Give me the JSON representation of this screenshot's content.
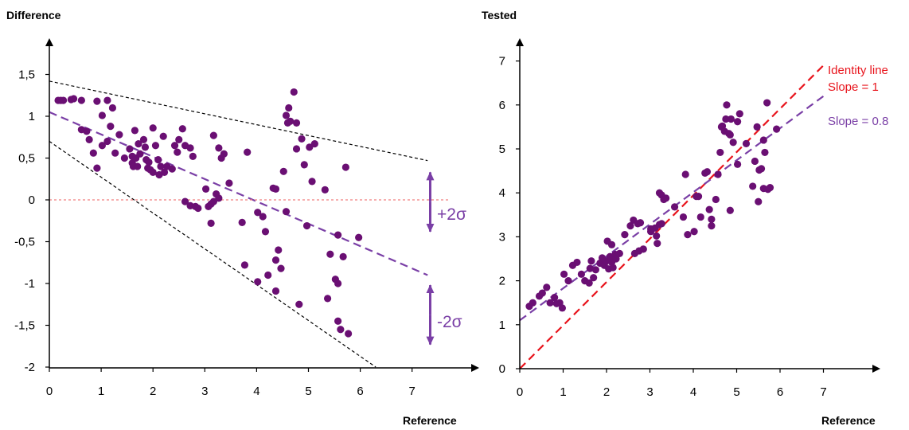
{
  "colors": {
    "points": "#6a0f73",
    "regression": "#7a3fa6",
    "identity": "#e8141c",
    "envelope": "#000000",
    "zero_line": "#f07f7f",
    "arrow": "#7a3fa6",
    "axis": "#000000"
  },
  "chart_data": [
    {
      "type": "scatter",
      "ylabel": "Difference",
      "xlabel": "Reference",
      "xlim": [
        0,
        8
      ],
      "ylim": [
        -2,
        1.75
      ],
      "xticks": [
        0,
        1,
        2,
        3,
        4,
        5,
        6,
        7
      ],
      "yticks": [
        -2,
        -1.5,
        -1,
        -0.5,
        0,
        0.5,
        1,
        1.5
      ],
      "xtick_labels": [
        "0",
        "1",
        "2",
        "3",
        "4",
        "5",
        "6",
        "7"
      ],
      "ytick_labels": [
        "-2",
        "-1,5",
        "-1",
        "-0,5",
        "0",
        "0,5",
        "1",
        "1,5"
      ],
      "grid": false,
      "lines": [
        {
          "kind": "regression",
          "x": [
            0,
            7.3
          ],
          "y": [
            1.05,
            -0.9
          ]
        },
        {
          "kind": "upper-envelope",
          "x": [
            0,
            7.3
          ],
          "y": [
            1.42,
            0.47
          ]
        },
        {
          "kind": "lower-envelope",
          "x": [
            0,
            6.3
          ],
          "y": [
            0.7,
            -2.0
          ]
        },
        {
          "kind": "zero-line",
          "x": [
            0,
            7.7
          ],
          "y": [
            0,
            0
          ]
        }
      ],
      "annotations": [
        {
          "text": "+2σ",
          "x": 7.35,
          "y0": 0.33,
          "y1": -0.38
        },
        {
          "text": "-2σ",
          "x": 7.35,
          "y0": -1.02,
          "y1": -1.73
        }
      ],
      "points": [
        [
          0.17,
          1.19
        ],
        [
          0.22,
          1.19
        ],
        [
          0.27,
          1.19
        ],
        [
          0.42,
          1.2
        ],
        [
          0.47,
          1.21
        ],
        [
          0.62,
          1.19
        ],
        [
          0.92,
          1.18
        ],
        [
          1.12,
          1.19
        ],
        [
          1.22,
          1.1
        ],
        [
          1.02,
          1.01
        ],
        [
          1.18,
          0.88
        ],
        [
          0.62,
          0.84
        ],
        [
          0.72,
          0.82
        ],
        [
          0.77,
          0.72
        ],
        [
          0.85,
          0.56
        ],
        [
          0.92,
          0.38
        ],
        [
          1.02,
          0.65
        ],
        [
          1.12,
          0.7
        ],
        [
          1.27,
          0.56
        ],
        [
          1.35,
          0.78
        ],
        [
          1.45,
          0.5
        ],
        [
          1.55,
          0.61
        ],
        [
          1.6,
          0.52
        ],
        [
          1.6,
          0.44
        ],
        [
          1.62,
          0.4
        ],
        [
          1.65,
          0.83
        ],
        [
          1.67,
          0.5
        ],
        [
          1.7,
          0.4
        ],
        [
          1.72,
          0.67
        ],
        [
          1.75,
          0.55
        ],
        [
          1.82,
          0.72
        ],
        [
          1.85,
          0.63
        ],
        [
          1.87,
          0.48
        ],
        [
          1.9,
          0.38
        ],
        [
          1.92,
          0.45
        ],
        [
          1.95,
          0.36
        ],
        [
          2.0,
          0.33
        ],
        [
          2.0,
          0.86
        ],
        [
          2.05,
          0.65
        ],
        [
          2.1,
          0.48
        ],
        [
          2.12,
          0.3
        ],
        [
          2.15,
          0.4
        ],
        [
          2.2,
          0.76
        ],
        [
          2.22,
          0.33
        ],
        [
          2.27,
          0.4
        ],
        [
          2.37,
          0.37
        ],
        [
          2.42,
          0.65
        ],
        [
          2.47,
          0.57
        ],
        [
          2.5,
          0.72
        ],
        [
          2.57,
          0.85
        ],
        [
          2.62,
          0.65
        ],
        [
          2.72,
          0.62
        ],
        [
          2.77,
          0.52
        ],
        [
          2.62,
          -0.02
        ],
        [
          2.72,
          -0.07
        ],
        [
          2.82,
          -0.08
        ],
        [
          2.87,
          -0.1
        ],
        [
          3.02,
          0.13
        ],
        [
          3.07,
          -0.08
        ],
        [
          3.12,
          -0.05
        ],
        [
          3.12,
          -0.28
        ],
        [
          3.17,
          -0.02
        ],
        [
          3.22,
          0.07
        ],
        [
          3.27,
          0.02
        ],
        [
          3.17,
          0.77
        ],
        [
          3.27,
          0.62
        ],
        [
          3.32,
          0.5
        ],
        [
          3.37,
          0.55
        ],
        [
          3.47,
          0.2
        ],
        [
          3.72,
          -0.27
        ],
        [
          3.82,
          0.57
        ],
        [
          4.02,
          -0.15
        ],
        [
          4.12,
          -0.2
        ],
        [
          4.17,
          -0.38
        ],
        [
          4.32,
          0.14
        ],
        [
          4.37,
          0.13
        ],
        [
          4.52,
          0.34
        ],
        [
          4.42,
          -0.6
        ],
        [
          4.37,
          -0.72
        ],
        [
          3.77,
          -0.78
        ],
        [
          4.02,
          -0.98
        ],
        [
          4.22,
          -0.9
        ],
        [
          4.37,
          -1.09
        ],
        [
          4.47,
          -0.82
        ],
        [
          4.57,
          -0.14
        ],
        [
          4.6,
          0.92
        ],
        [
          4.62,
          1.1
        ],
        [
          4.65,
          0.94
        ],
        [
          4.57,
          1.01
        ],
        [
          4.72,
          1.29
        ],
        [
          4.77,
          0.92
        ],
        [
          4.77,
          0.61
        ],
        [
          4.87,
          0.73
        ],
        [
          4.92,
          0.42
        ],
        [
          5.02,
          0.63
        ],
        [
          5.07,
          0.22
        ],
        [
          5.12,
          0.67
        ],
        [
          4.97,
          -0.31
        ],
        [
          4.82,
          -1.25
        ],
        [
          5.32,
          0.12
        ],
        [
          5.42,
          -0.65
        ],
        [
          5.37,
          -1.18
        ],
        [
          5.52,
          -0.95
        ],
        [
          5.57,
          -1.0
        ],
        [
          5.57,
          -0.42
        ],
        [
          5.67,
          -0.68
        ],
        [
          5.57,
          -1.45
        ],
        [
          5.62,
          -1.55
        ],
        [
          5.72,
          0.39
        ],
        [
          5.77,
          -1.6
        ],
        [
          5.97,
          -0.45
        ]
      ]
    },
    {
      "type": "scatter",
      "ylabel": "Tested",
      "xlabel": "Reference",
      "xlim": [
        0,
        8
      ],
      "ylim": [
        0,
        7.5
      ],
      "xticks": [
        0,
        1,
        2,
        3,
        4,
        5,
        6,
        7
      ],
      "yticks": [
        0,
        1,
        2,
        3,
        4,
        5,
        6,
        7
      ],
      "xtick_labels": [
        "0",
        "1",
        "2",
        "3",
        "4",
        "5",
        "6",
        "7"
      ],
      "ytick_labels": [
        "0",
        "1",
        "2",
        "3",
        "4",
        "5",
        "6",
        "7"
      ],
      "grid": false,
      "lines": [
        {
          "kind": "identity",
          "name": "Slope = 1",
          "x": [
            0,
            7.0
          ],
          "y": [
            0,
            6.9
          ]
        },
        {
          "kind": "regression",
          "name": "Slope = 0.8",
          "x": [
            0,
            7.0
          ],
          "y": [
            1.1,
            6.2
          ]
        }
      ],
      "legend": {
        "placement": "top-right",
        "entries": [
          "Identity line",
          "Slope = 1",
          "Slope = 0.8"
        ]
      },
      "points": [
        [
          0.22,
          1.42
        ],
        [
          0.3,
          1.5
        ],
        [
          0.45,
          1.65
        ],
        [
          0.52,
          1.72
        ],
        [
          0.62,
          1.85
        ],
        [
          0.7,
          1.5
        ],
        [
          0.8,
          1.62
        ],
        [
          0.85,
          1.48
        ],
        [
          0.92,
          1.5
        ],
        [
          0.98,
          1.38
        ],
        [
          1.02,
          2.15
        ],
        [
          1.12,
          2.0
        ],
        [
          1.22,
          2.35
        ],
        [
          1.32,
          2.42
        ],
        [
          1.42,
          2.15
        ],
        [
          1.5,
          2.0
        ],
        [
          1.6,
          1.95
        ],
        [
          1.62,
          2.28
        ],
        [
          1.65,
          2.45
        ],
        [
          1.7,
          2.07
        ],
        [
          1.75,
          2.25
        ],
        [
          1.85,
          2.4
        ],
        [
          1.9,
          2.52
        ],
        [
          1.95,
          2.35
        ],
        [
          2.0,
          2.45
        ],
        [
          2.05,
          2.27
        ],
        [
          2.08,
          2.55
        ],
        [
          2.12,
          2.42
        ],
        [
          2.15,
          2.3
        ],
        [
          2.2,
          2.6
        ],
        [
          2.22,
          2.5
        ],
        [
          2.3,
          2.62
        ],
        [
          2.02,
          2.9
        ],
        [
          2.12,
          2.82
        ],
        [
          2.42,
          3.05
        ],
        [
          2.55,
          3.25
        ],
        [
          2.62,
          3.38
        ],
        [
          2.72,
          3.3
        ],
        [
          2.78,
          3.32
        ],
        [
          2.65,
          2.62
        ],
        [
          2.75,
          2.68
        ],
        [
          2.85,
          2.72
        ],
        [
          3.02,
          3.12
        ],
        [
          3.12,
          3.2
        ],
        [
          3.15,
          3.02
        ],
        [
          3.17,
          2.85
        ],
        [
          3.22,
          3.28
        ],
        [
          3.27,
          3.3
        ],
        [
          3.22,
          4.0
        ],
        [
          3.27,
          3.95
        ],
        [
          3.32,
          3.85
        ],
        [
          3.37,
          3.88
        ],
        [
          3.57,
          3.68
        ],
        [
          3.77,
          3.45
        ],
        [
          3.82,
          4.42
        ],
        [
          3.87,
          3.05
        ],
        [
          4.02,
          3.12
        ],
        [
          4.07,
          3.92
        ],
        [
          4.12,
          3.92
        ],
        [
          4.17,
          3.45
        ],
        [
          4.27,
          4.45
        ],
        [
          4.32,
          4.48
        ],
        [
          4.37,
          3.62
        ],
        [
          4.42,
          3.25
        ],
        [
          4.42,
          3.4
        ],
        [
          4.52,
          3.85
        ],
        [
          4.57,
          4.42
        ],
        [
          4.62,
          4.92
        ],
        [
          4.65,
          5.5
        ],
        [
          4.67,
          5.52
        ],
        [
          4.72,
          5.4
        ],
        [
          4.75,
          5.68
        ],
        [
          4.77,
          6.0
        ],
        [
          4.82,
          5.35
        ],
        [
          4.85,
          5.32
        ],
        [
          4.85,
          3.6
        ],
        [
          4.87,
          5.68
        ],
        [
          4.92,
          5.15
        ],
        [
          5.02,
          4.65
        ],
        [
          5.02,
          5.62
        ],
        [
          5.07,
          5.8
        ],
        [
          5.22,
          5.12
        ],
        [
          5.37,
          4.15
        ],
        [
          5.42,
          4.72
        ],
        [
          5.47,
          5.5
        ],
        [
          5.52,
          4.52
        ],
        [
          5.57,
          4.55
        ],
        [
          5.62,
          4.1
        ],
        [
          5.62,
          5.2
        ],
        [
          5.65,
          4.92
        ],
        [
          5.7,
          6.05
        ],
        [
          5.72,
          4.08
        ],
        [
          5.77,
          4.12
        ],
        [
          5.92,
          5.45
        ],
        [
          5.5,
          3.8
        ],
        [
          3.02,
          3.18
        ]
      ]
    }
  ]
}
